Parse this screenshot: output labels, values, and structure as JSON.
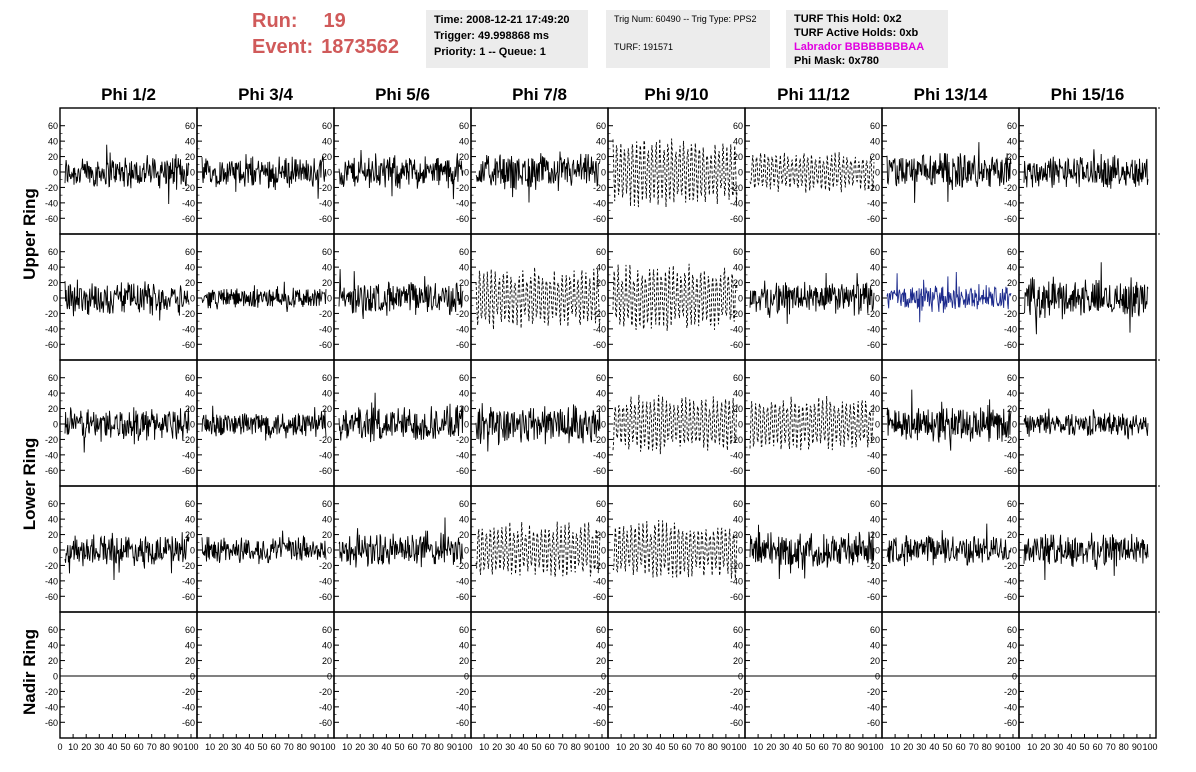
{
  "header": {
    "run_label": "Run:",
    "run_value": "19",
    "event_label": "Event:",
    "event_value": "1873562"
  },
  "info_box_1": {
    "time": "Time: 2008-12-21 17:49:20",
    "trigger": "Trigger: 49.998868 ms",
    "priority": "Priority: 1 -- Queue: 1"
  },
  "info_box_2": {
    "trig": "Trig Num: 60490 -- Trig Type: PPS2",
    "turf": "TURF: 191571"
  },
  "info_box_3": {
    "this_hold": "TURF This Hold: 0x2",
    "active_holds": "TURF Active Holds: 0xb",
    "labrador": "Labrador BBBBBBBBAA",
    "phi_mask": "Phi Mask: 0x780"
  },
  "colors": {
    "run_text": "#d05a5a",
    "labrador_text": "#e000e0",
    "trace_default": "#000000",
    "trace_highlight": "#1c2a8c",
    "info_box_bg": "#ececec"
  },
  "chart_data": {
    "type": "line",
    "phi_labels": [
      "Phi 1/2",
      "Phi 3/4",
      "Phi 5/6",
      "Phi 7/8",
      "Phi 9/10",
      "Phi 11/12",
      "Phi 13/14",
      "Phi 15/16"
    ],
    "ring_labels": [
      "Upper Ring",
      "Lower Ring",
      "Nadir Ring"
    ],
    "ylim": [
      -70,
      70
    ],
    "yticks": [
      -60,
      -40,
      -20,
      0,
      20,
      40,
      60
    ],
    "xlim": [
      0,
      100
    ],
    "xticks": [
      0,
      10,
      20,
      30,
      40,
      50,
      60,
      70,
      80,
      90,
      100
    ],
    "rows": [
      {
        "ring": "Upper Ring",
        "panels": [
          {
            "style": "solid",
            "amplitude": 22,
            "color": "default"
          },
          {
            "style": "solid",
            "amplitude": 20,
            "color": "default"
          },
          {
            "style": "solid",
            "amplitude": 22,
            "color": "default"
          },
          {
            "style": "solid",
            "amplitude": 24,
            "color": "default"
          },
          {
            "style": "dashed",
            "amplitude": 42,
            "color": "default"
          },
          {
            "style": "dashed",
            "amplitude": 25,
            "color": "default"
          },
          {
            "style": "solid",
            "amplitude": 24,
            "color": "default"
          },
          {
            "style": "solid",
            "amplitude": 22,
            "color": "default"
          }
        ]
      },
      {
        "ring": "Upper Ring",
        "panels": [
          {
            "style": "solid",
            "amplitude": 22,
            "color": "default"
          },
          {
            "style": "solid",
            "amplitude": 14,
            "color": "default"
          },
          {
            "style": "solid",
            "amplitude": 22,
            "color": "default"
          },
          {
            "style": "dashed",
            "amplitude": 38,
            "color": "default"
          },
          {
            "style": "dashed",
            "amplitude": 42,
            "color": "default"
          },
          {
            "style": "solid",
            "amplitude": 22,
            "color": "default"
          },
          {
            "style": "solid",
            "amplitude": 18,
            "color": "highlight"
          },
          {
            "style": "solid",
            "amplitude": 26,
            "color": "default"
          }
        ]
      },
      {
        "ring": "Lower Ring",
        "panels": [
          {
            "style": "solid",
            "amplitude": 22,
            "color": "default"
          },
          {
            "style": "solid",
            "amplitude": 18,
            "color": "default"
          },
          {
            "style": "solid",
            "amplitude": 24,
            "color": "default"
          },
          {
            "style": "solid",
            "amplitude": 28,
            "color": "default"
          },
          {
            "style": "dashed",
            "amplitude": 36,
            "color": "default"
          },
          {
            "style": "dashed",
            "amplitude": 34,
            "color": "default"
          },
          {
            "style": "solid",
            "amplitude": 24,
            "color": "default"
          },
          {
            "style": "solid",
            "amplitude": 16,
            "color": "default"
          }
        ]
      },
      {
        "ring": "Lower Ring",
        "panels": [
          {
            "style": "solid",
            "amplitude": 20,
            "color": "default"
          },
          {
            "style": "solid",
            "amplitude": 18,
            "color": "default"
          },
          {
            "style": "solid",
            "amplitude": 22,
            "color": "default"
          },
          {
            "style": "dashed",
            "amplitude": 34,
            "color": "default"
          },
          {
            "style": "dashed",
            "amplitude": 36,
            "color": "default"
          },
          {
            "style": "solid",
            "amplitude": 24,
            "color": "default"
          },
          {
            "style": "solid",
            "amplitude": 20,
            "color": "default"
          },
          {
            "style": "solid",
            "amplitude": 22,
            "color": "default"
          }
        ]
      },
      {
        "ring": "Nadir Ring",
        "panels": [
          {
            "style": "flat",
            "amplitude": 0,
            "color": "default"
          },
          {
            "style": "flat",
            "amplitude": 0,
            "color": "default"
          },
          {
            "style": "flat",
            "amplitude": 0,
            "color": "default"
          },
          {
            "style": "flat",
            "amplitude": 0,
            "color": "default"
          },
          {
            "style": "flat",
            "amplitude": 0,
            "color": "default"
          },
          {
            "style": "flat",
            "amplitude": 0,
            "color": "default"
          },
          {
            "style": "flat",
            "amplitude": 0,
            "color": "default"
          },
          {
            "style": "flat",
            "amplitude": 0,
            "color": "default"
          }
        ]
      }
    ]
  }
}
